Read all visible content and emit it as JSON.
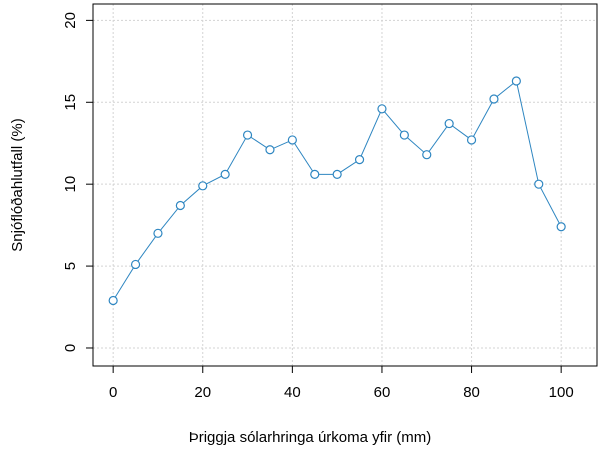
{
  "chart_data": {
    "type": "line",
    "x_label": "Þriggja sólarhringa úrkoma yfir (mm)",
    "y_label": "Snjóflóðahlutfall (%)",
    "x": [
      0,
      5,
      10,
      15,
      20,
      25,
      30,
      35,
      40,
      45,
      50,
      55,
      60,
      65,
      70,
      75,
      80,
      85,
      90,
      95,
      100
    ],
    "values": [
      2.9,
      5.1,
      7.0,
      8.7,
      9.9,
      10.6,
      13.0,
      12.1,
      12.7,
      10.6,
      10.6,
      11.5,
      14.6,
      13.0,
      11.8,
      13.7,
      12.7,
      15.2,
      16.3,
      10.0,
      7.4
    ],
    "color": "#2e86c1",
    "xlim": [
      -4.5,
      108
    ],
    "ylim": [
      -1.1,
      21
    ],
    "xticks": [
      0,
      20,
      40,
      60,
      80,
      100
    ],
    "yticks": [
      0,
      5,
      10,
      15,
      20
    ],
    "grid": true
  }
}
